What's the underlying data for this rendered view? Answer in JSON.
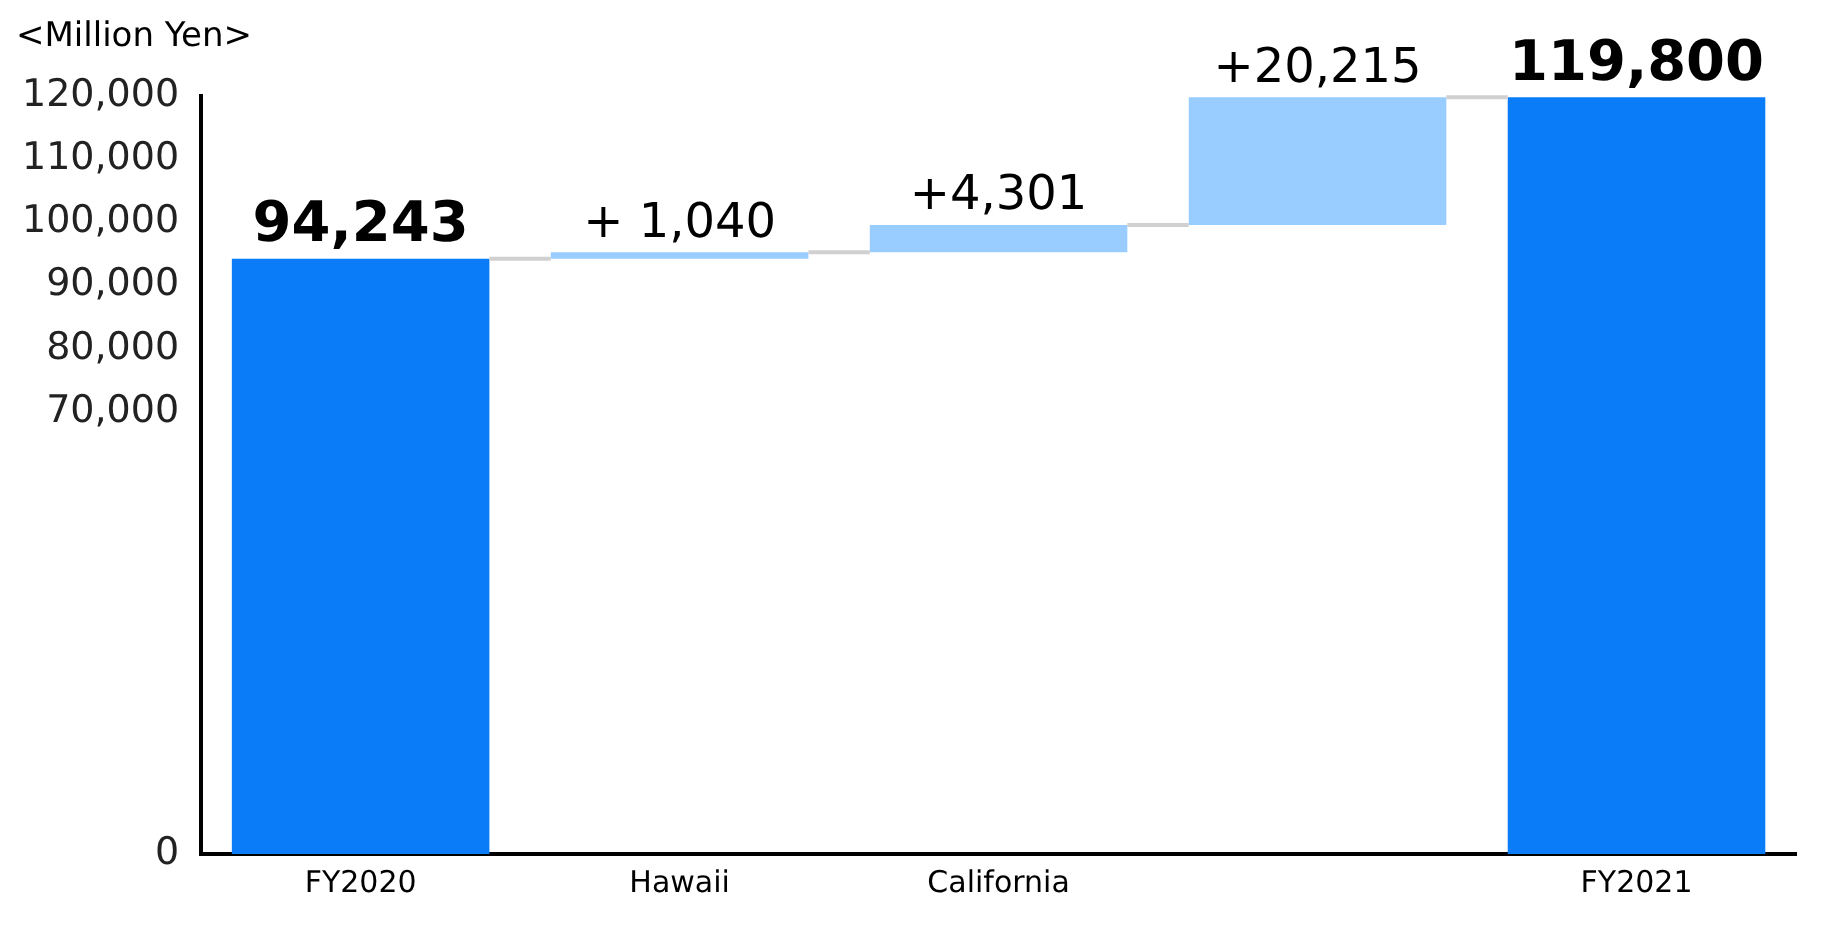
{
  "chart_data": {
    "type": "bar",
    "ylabel": "<Million Yen>",
    "categories": [
      "FY2020",
      "Hawaii",
      "California",
      null,
      "FY2021"
    ],
    "values": [
      94243,
      1040,
      4301,
      20215,
      119800
    ],
    "base": [
      0,
      94243,
      95283,
      99584,
      0
    ],
    "colors": [
      "#0a7cf7",
      "#99ccff",
      "#99ccff",
      "#99ccff",
      "#0a7cf7"
    ],
    "value_labels": [
      "94,243",
      "+ 1,040",
      "+4,301",
      "+20,215",
      "119,800"
    ],
    "ylim": [
      0,
      120000
    ],
    "yticks": [
      0,
      {
        "value": 70000,
        "label": "70,000"
      },
      {
        "value": 80000,
        "label": "80,000"
      },
      {
        "value": 90000,
        "label": "90,000"
      },
      {
        "value": 100000,
        "label": "100,000"
      },
      {
        "value": 110000,
        "label": "110,000"
      },
      {
        "value": 120000,
        "label": "120,000"
      }
    ],
    "grid": false,
    "legend": false
  }
}
